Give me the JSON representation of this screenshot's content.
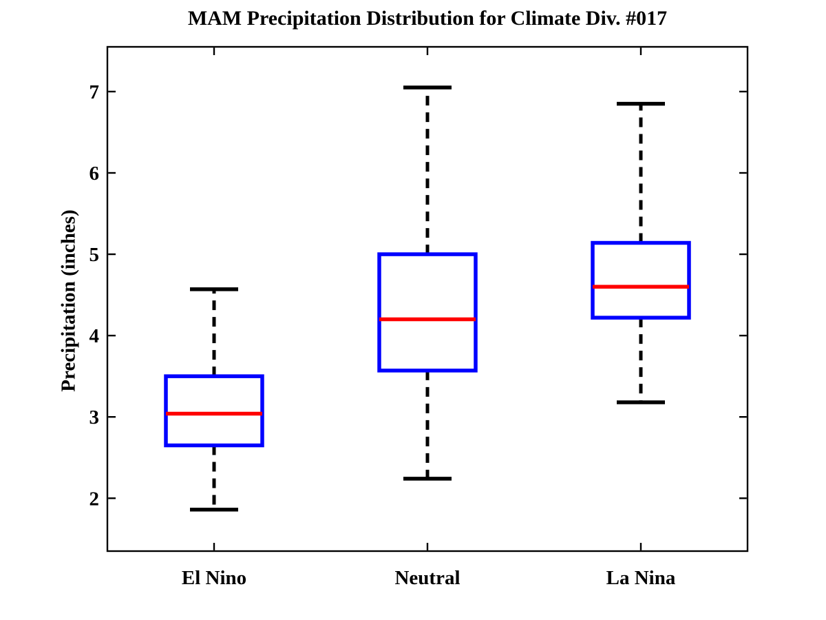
{
  "chart_data": {
    "type": "boxplot",
    "title": "MAM Precipitation Distribution for Climate Div. #017",
    "ylabel": "Precipitation (inches)",
    "xlabel": "",
    "categories": [
      "El Nino",
      "Neutral",
      "La Nina"
    ],
    "series": [
      {
        "name": "El Nino",
        "whisker_low": 1.86,
        "q1": 2.65,
        "median": 3.04,
        "q3": 3.5,
        "whisker_high": 4.57
      },
      {
        "name": "Neutral",
        "whisker_low": 2.24,
        "q1": 3.57,
        "median": 4.2,
        "q3": 5.0,
        "whisker_high": 7.05
      },
      {
        "name": "La Nina",
        "whisker_low": 3.18,
        "q1": 4.22,
        "median": 4.6,
        "q3": 5.14,
        "whisker_high": 6.85
      }
    ],
    "ylim": [
      1.35,
      7.55
    ],
    "yticks": [
      2,
      3,
      4,
      5,
      6,
      7
    ],
    "grid": false,
    "legend": "none",
    "colors": {
      "box": "#0000ff",
      "median": "#ff0000",
      "whisker": "#000000",
      "cap": "#000000",
      "axis": "#000000",
      "background": "#ffffff"
    }
  }
}
